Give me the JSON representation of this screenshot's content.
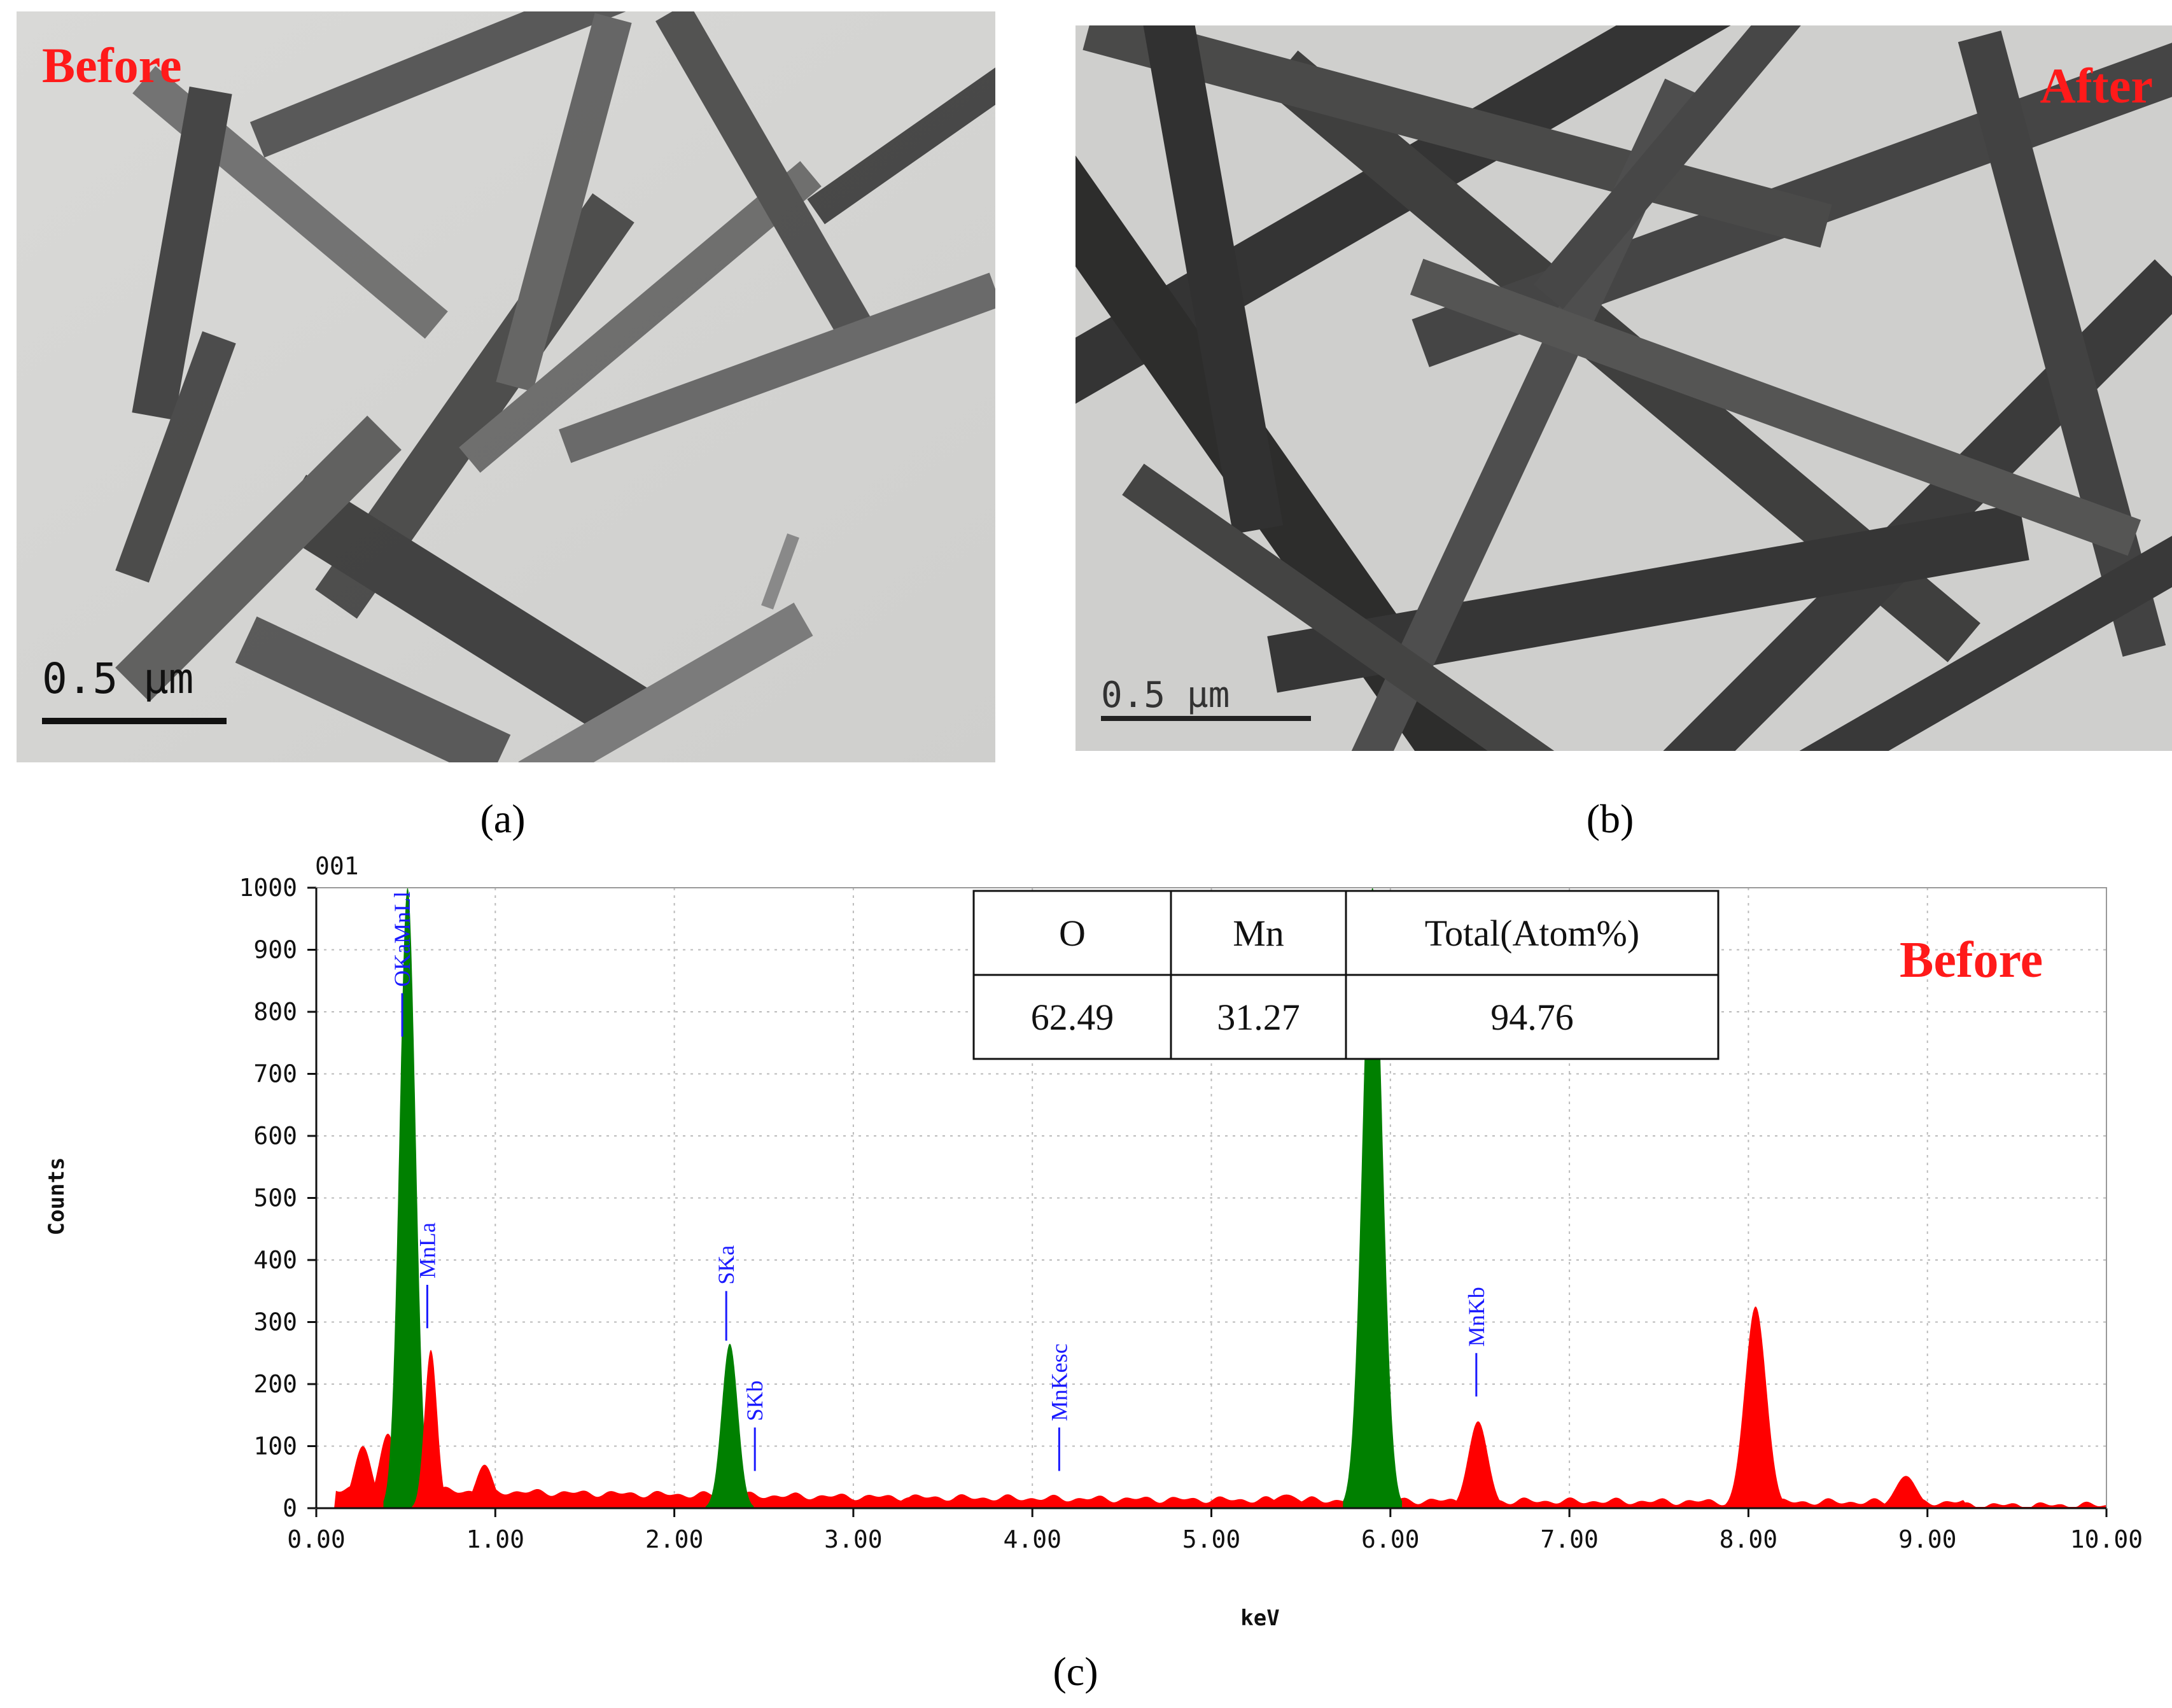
{
  "panels": {
    "a": {
      "letter": "(a)",
      "label": "Before",
      "scale": "0.5 μm"
    },
    "b": {
      "letter": "(b)",
      "label": "After",
      "scale": "0.5 μm"
    },
    "c": {
      "letter": "(c)"
    }
  },
  "chart_data": {
    "type": "area",
    "sample_id": "001",
    "annotation": "Before",
    "xlabel": "keV",
    "ylabel": "Counts",
    "xlim": [
      0,
      10
    ],
    "ylim": [
      0,
      1000
    ],
    "x_ticks": [
      "0.00",
      "1.00",
      "2.00",
      "3.00",
      "4.00",
      "5.00",
      "6.00",
      "7.00",
      "8.00",
      "9.00",
      "10.00"
    ],
    "y_ticks": [
      "0",
      "100",
      "200",
      "300",
      "400",
      "500",
      "600",
      "700",
      "800",
      "900",
      "1000"
    ],
    "colors": {
      "spectrum": "#ff0000",
      "identified": "#008000",
      "labels": "#1a1aff"
    },
    "peaks": [
      {
        "x": 0.26,
        "y": 100,
        "width": 0.05,
        "identified": false
      },
      {
        "x": 0.4,
        "y": 120,
        "width": 0.05,
        "identified": false
      },
      {
        "x": 0.51,
        "y": 1000,
        "width": 0.045,
        "identified": true
      },
      {
        "x": 0.64,
        "y": 255,
        "width": 0.035,
        "identified": false
      },
      {
        "x": 0.94,
        "y": 70,
        "width": 0.05,
        "identified": false
      },
      {
        "x": 2.31,
        "y": 265,
        "width": 0.045,
        "identified": true
      },
      {
        "x": 3.32,
        "y": 18,
        "width": 0.06,
        "identified": false
      },
      {
        "x": 3.72,
        "y": 15,
        "width": 0.06,
        "identified": false
      },
      {
        "x": 5.42,
        "y": 22,
        "width": 0.07,
        "identified": false
      },
      {
        "x": 5.9,
        "y": 1000,
        "width": 0.055,
        "identified": true
      },
      {
        "x": 6.49,
        "y": 140,
        "width": 0.055,
        "identified": false
      },
      {
        "x": 8.04,
        "y": 325,
        "width": 0.06,
        "identified": false
      },
      {
        "x": 8.88,
        "y": 52,
        "width": 0.06,
        "identified": false
      }
    ],
    "peak_labels": [
      {
        "text": "OKaMnLl",
        "x": 0.48,
        "marker_y": [
          830,
          760
        ]
      },
      {
        "text": "MnLa",
        "x": 0.62,
        "marker_y": [
          360,
          290
        ]
      },
      {
        "text": "SKa",
        "x": 2.29,
        "marker_y": [
          350,
          270
        ]
      },
      {
        "text": "SKb",
        "x": 2.45,
        "marker_y": [
          130,
          60
        ]
      },
      {
        "text": "MnKesc",
        "x": 4.15,
        "marker_y": [
          130,
          60
        ]
      },
      {
        "text": "MnKa",
        "x": 5.88,
        "marker_y": [
          830,
          770
        ]
      },
      {
        "text": "MnKb",
        "x": 6.48,
        "marker_y": [
          250,
          180
        ]
      }
    ],
    "table": {
      "headers": [
        "O",
        "Mn",
        "Total(Atom%)"
      ],
      "values": [
        "62.49",
        "31.27",
        "94.76"
      ]
    }
  }
}
